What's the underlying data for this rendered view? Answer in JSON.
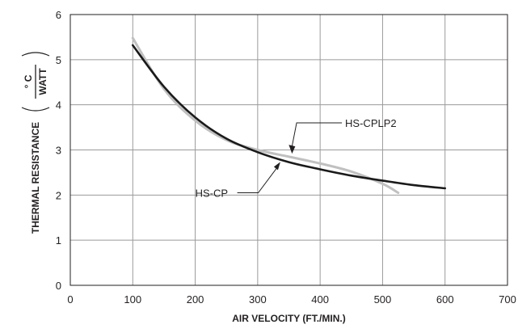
{
  "chart_data": {
    "type": "line",
    "title": "",
    "xlabel": "AIR VELOCITY (FT./MIN.)",
    "ylabel": {
      "main": "THERMAL RESISTANCE",
      "unit_numerator": "° C",
      "unit_denominator": "WATT"
    },
    "xlim": [
      0,
      700
    ],
    "ylim": [
      0,
      6
    ],
    "x_ticks": [
      "0",
      "100",
      "200",
      "300",
      "400",
      "500",
      "600",
      "700"
    ],
    "y_ticks": [
      "0",
      "1",
      "2",
      "3",
      "4",
      "5",
      "6"
    ],
    "grid": true,
    "legend": "none",
    "series": [
      {
        "name": "HS-CP",
        "color": "#1a1a1a",
        "x": [
          100,
          150,
          200,
          250,
          300,
          350,
          400,
          450,
          500,
          550,
          600
        ],
        "y": [
          5.32,
          4.4,
          3.72,
          3.25,
          2.95,
          2.73,
          2.57,
          2.43,
          2.32,
          2.22,
          2.15
        ]
      },
      {
        "name": "HS-CPLP2",
        "color": "#c0c0c0",
        "x": [
          100,
          150,
          200,
          250,
          300,
          350,
          400,
          450,
          500,
          525
        ],
        "y": [
          5.48,
          4.35,
          3.65,
          3.22,
          3.0,
          2.85,
          2.7,
          2.52,
          2.25,
          2.05
        ]
      }
    ],
    "annotations": [
      {
        "text": "HS-CPLP2",
        "series": "HS-CPLP2",
        "x": 355,
        "y": 2.9,
        "text_x": 440,
        "text_y": 3.6
      },
      {
        "text": "HS-CP",
        "series": "HS-CP",
        "x": 335,
        "y": 2.77,
        "text_x": 200,
        "text_y": 2.05
      }
    ]
  }
}
